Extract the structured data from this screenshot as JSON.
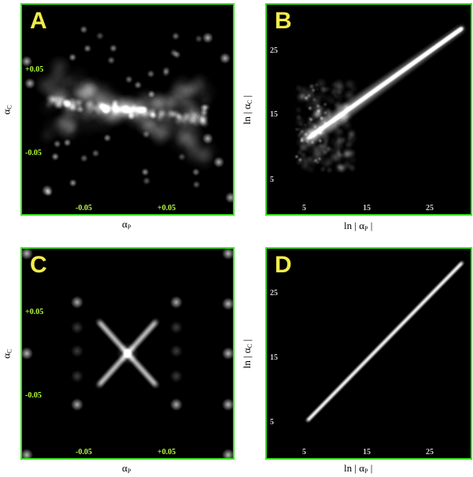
{
  "colors": {
    "frame": "#33e61a",
    "panel_label": "#f2ec4a",
    "background": "#000000"
  },
  "panels": {
    "A": {
      "label": "A",
      "xticks": [
        "-0.05",
        "+0.05"
      ],
      "yticks": [
        "+0.05",
        "-0.05"
      ],
      "xlabel": "α",
      "xlabel_sub": "P",
      "ylabel": "α",
      "ylabel_sub": "C"
    },
    "B": {
      "label": "B",
      "xticks": [
        "5",
        "15",
        "25"
      ],
      "yticks": [
        "25",
        "15",
        "5"
      ],
      "xlabel_pre": "ln | α",
      "xlabel_sub": "P",
      "xlabel_post": " |",
      "ylabel_pre": "ln | α",
      "ylabel_sub": "C",
      "ylabel_post": " |"
    },
    "C": {
      "label": "C",
      "xticks": [
        "-0.05",
        "+0.05"
      ],
      "yticks": [
        "+0.05",
        "-0.05"
      ],
      "xlabel": "α",
      "xlabel_sub": "P",
      "ylabel": "α",
      "ylabel_sub": "C"
    },
    "D": {
      "label": "D",
      "xticks": [
        "5",
        "15",
        "25"
      ],
      "yticks": [
        "25",
        "15",
        "5"
      ],
      "xlabel_pre": "ln | α",
      "xlabel_sub": "P",
      "xlabel_post": " |",
      "ylabel_pre": "ln | α",
      "ylabel_sub": "C",
      "ylabel_post": " |"
    }
  }
}
